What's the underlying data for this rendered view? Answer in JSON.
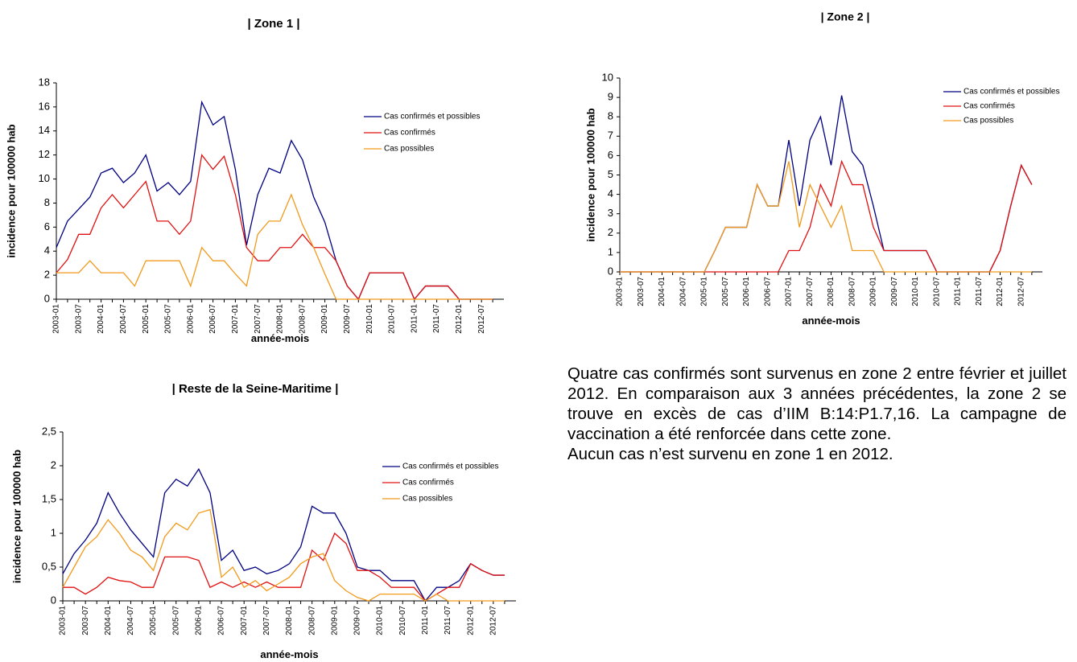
{
  "chart_data": [
    {
      "type": "line",
      "title": "| Zone 1 |",
      "x_label": "année-mois",
      "y_label": "incidence pour 100000 hab",
      "categories": [
        "2003-01",
        null,
        "2003-07",
        null,
        "2004-01",
        null,
        "2004-07",
        null,
        "2005-01",
        null,
        "2005-07",
        null,
        "2006-01",
        null,
        "2006-07",
        null,
        "2007-01",
        null,
        "2007-07",
        null,
        "2008-01",
        null,
        "2008-07",
        null,
        "2009-01",
        null,
        "2009-07",
        null,
        "2010-01",
        null,
        "2010-07",
        null,
        "2011-01",
        null,
        "2011-07",
        null,
        "2012-01",
        null,
        "2012-07",
        null
      ],
      "ylim": [
        0,
        18
      ],
      "yticks": [
        0,
        2,
        4,
        6,
        8,
        10,
        12,
        14,
        16,
        18
      ],
      "series": [
        {
          "name": "Cas confirmés et possibles",
          "color": "#000080",
          "values": [
            4.3,
            6.5,
            7.5,
            8.5,
            10.5,
            10.9,
            9.7,
            10.5,
            12,
            9,
            9.7,
            8.7,
            9.8,
            16.4,
            14.5,
            15.2,
            10.8,
            4.5,
            8.7,
            10.9,
            10.5,
            13.2,
            11.6,
            8.5,
            6.4,
            3.2,
            1.1,
            0,
            2.2,
            2.2,
            2.2,
            2.2,
            0,
            1.1,
            1.1,
            1.1,
            0,
            0,
            0,
            0
          ]
        },
        {
          "name": "Cas confirmés",
          "color": "#e01010",
          "values": [
            2.2,
            3.3,
            5.4,
            5.4,
            7.6,
            8.7,
            7.6,
            8.7,
            9.8,
            6.5,
            6.5,
            5.4,
            6.5,
            12,
            10.8,
            11.9,
            8.7,
            4.3,
            3.2,
            3.2,
            4.3,
            4.3,
            5.4,
            4.3,
            4.3,
            3.2,
            1.1,
            0,
            2.2,
            2.2,
            2.2,
            2.2,
            0,
            1.1,
            1.1,
            1.1,
            0,
            0,
            0,
            0
          ]
        },
        {
          "name": "Cas possibles",
          "color": "#f29a1c",
          "values": [
            2.2,
            2.2,
            2.2,
            3.2,
            2.2,
            2.2,
            2.2,
            1.1,
            3.2,
            3.2,
            3.2,
            3.2,
            1.1,
            4.3,
            3.2,
            3.2,
            2.1,
            1.1,
            5.4,
            6.5,
            6.5,
            8.7,
            6.2,
            4.3,
            2.1,
            0,
            0,
            0,
            0,
            0,
            0,
            0,
            0,
            0,
            0,
            0,
            0,
            0,
            0,
            0
          ]
        }
      ]
    },
    {
      "type": "line",
      "title": "| Zone 2 |",
      "x_label": "année-mois",
      "y_label": "incidence pour 100000 hab",
      "categories": [
        "2003-01",
        null,
        "2003-07",
        null,
        "2004-01",
        null,
        "2004-07",
        null,
        "2005-01",
        null,
        "2005-07",
        null,
        "2006-01",
        null,
        "2006-07",
        null,
        "2007-01",
        null,
        "2007-07",
        null,
        "2008-01",
        null,
        "2008-07",
        null,
        "2009-01",
        null,
        "2009-07",
        null,
        "2010-01",
        null,
        "2010-07",
        null,
        "2011-01",
        null,
        "2011-07",
        null,
        "2012-01",
        null,
        "2012-07",
        null
      ],
      "ylim": [
        0,
        10
      ],
      "yticks": [
        0,
        1,
        2,
        3,
        4,
        5,
        6,
        7,
        8,
        9,
        10
      ],
      "series": [
        {
          "name": "Cas confirmés et possibles",
          "color": "#000080",
          "values": [
            0,
            0,
            0,
            0,
            0,
            0,
            0,
            0,
            0,
            1.1,
            2.3,
            2.3,
            2.3,
            4.5,
            3.4,
            3.4,
            6.8,
            3.4,
            6.8,
            8,
            5.5,
            9.1,
            6.2,
            5.5,
            3.4,
            1.1,
            1.1,
            1.1,
            1.1,
            1.1,
            0,
            0,
            0,
            0,
            0,
            0,
            1.1,
            3.4,
            5.5,
            4.5
          ]
        },
        {
          "name": "Cas confirmés",
          "color": "#e01010",
          "values": [
            0,
            0,
            0,
            0,
            0,
            0,
            0,
            0,
            0,
            0,
            0,
            0,
            0,
            0,
            0,
            0,
            1.1,
            1.1,
            2.3,
            4.5,
            3.4,
            5.7,
            4.5,
            4.5,
            2.3,
            1.1,
            1.1,
            1.1,
            1.1,
            1.1,
            0,
            0,
            0,
            0,
            0,
            0,
            1.1,
            3.4,
            5.5,
            4.5
          ]
        },
        {
          "name": "Cas possibles",
          "color": "#f29a1c",
          "values": [
            0,
            0,
            0,
            0,
            0,
            0,
            0,
            0,
            0,
            1.1,
            2.3,
            2.3,
            2.3,
            4.5,
            3.4,
            3.4,
            5.7,
            2.3,
            4.5,
            3.4,
            2.3,
            3.4,
            1.1,
            1.1,
            1.1,
            0,
            0,
            0,
            0,
            0,
            0,
            0,
            0,
            0,
            0,
            0,
            0,
            0,
            0,
            0
          ]
        }
      ]
    },
    {
      "type": "line",
      "title": "| Reste de la Seine-Maritime |",
      "x_label": "année-mois",
      "y_label": "incidence pour 100000 hab",
      "categories": [
        "2003-01",
        null,
        "2003-07",
        null,
        "2004-01",
        null,
        "2004-07",
        null,
        "2005-01",
        null,
        "2005-07",
        null,
        "2006-01",
        null,
        "2006-07",
        null,
        "2007-01",
        null,
        "2007-07",
        null,
        "2008-01",
        null,
        "2008-07",
        null,
        "2009-01",
        null,
        "2009-07",
        null,
        "2010-01",
        null,
        "2010-07",
        null,
        "2011-01",
        null,
        "2011-07",
        null,
        "2012-01",
        null,
        "2012-07",
        null
      ],
      "ylim": [
        0,
        2.5
      ],
      "yticks": [
        0,
        {
          "value": 0.5,
          "label": "0,5"
        },
        1,
        {
          "value": 1.5,
          "label": "1,5"
        },
        2,
        {
          "value": 2.5,
          "label": "2,5"
        }
      ],
      "series": [
        {
          "name": "Cas confirmés et possibles",
          "color": "#000080",
          "values": [
            0.4,
            0.7,
            0.9,
            1.15,
            1.6,
            1.3,
            1.05,
            0.85,
            0.65,
            1.6,
            1.8,
            1.7,
            1.95,
            1.6,
            0.6,
            0.75,
            0.45,
            0.5,
            0.4,
            0.45,
            0.55,
            0.8,
            1.4,
            1.3,
            1.3,
            1,
            0.5,
            0.45,
            0.45,
            0.3,
            0.3,
            0.3,
            0,
            0.2,
            0.2,
            0.3,
            0.55,
            0.45,
            0.38,
            0.38
          ]
        },
        {
          "name": "Cas confirmés",
          "color": "#e01010",
          "values": [
            0.2,
            0.2,
            0.1,
            0.2,
            0.35,
            0.3,
            0.28,
            0.2,
            0.2,
            0.65,
            0.65,
            0.65,
            0.6,
            0.2,
            0.28,
            0.2,
            0.28,
            0.2,
            0.28,
            0.2,
            0.2,
            0.2,
            0.75,
            0.6,
            1,
            0.85,
            0.45,
            0.45,
            0.35,
            0.2,
            0.2,
            0.2,
            0,
            0.1,
            0.2,
            0.2,
            0.55,
            0.45,
            0.38,
            0.38
          ]
        },
        {
          "name": "Cas possibles",
          "color": "#f29a1c",
          "values": [
            0.2,
            0.5,
            0.8,
            0.95,
            1.2,
            1,
            0.75,
            0.65,
            0.45,
            0.95,
            1.15,
            1.05,
            1.3,
            1.35,
            0.35,
            0.5,
            0.2,
            0.3,
            0.15,
            0.25,
            0.35,
            0.55,
            0.65,
            0.7,
            0.3,
            0.15,
            0.05,
            0,
            0.1,
            0.1,
            0.1,
            0.1,
            0,
            0.1,
            0,
            0,
            0,
            0,
            0,
            0
          ]
        }
      ]
    }
  ],
  "text": [
    "Quatre cas confirmés sont survenus en zone 2 entre février et juillet 2012. En comparaison aux 3 années précédentes, la zone 2 se trouve en excès de cas d’IIM B:14:P1.7,16. La campagne de vaccination a été renforcée dans cette zone.",
    "Aucun cas n’est survenu en zone 1 en 2012."
  ]
}
